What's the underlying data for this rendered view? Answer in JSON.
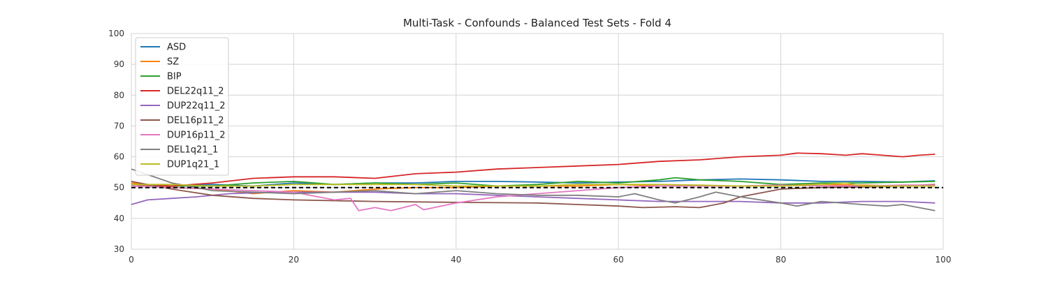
{
  "chart_data": {
    "type": "line",
    "title": "Multi-Task - Confounds - Balanced Test Sets - Fold 4",
    "xlabel": "",
    "ylabel": "",
    "xlim": [
      0,
      100
    ],
    "ylim": [
      30,
      100
    ],
    "xticks": [
      0,
      20,
      40,
      60,
      80,
      100
    ],
    "yticks": [
      30,
      40,
      50,
      60,
      70,
      80,
      90,
      100
    ],
    "grid": true,
    "legend_position": "top-left",
    "reference_line": {
      "y": 50,
      "style": "dashed",
      "color": "#000000"
    },
    "series": [
      {
        "name": "ASD",
        "color": "#1f77b4",
        "points": [
          [
            0,
            51
          ],
          [
            5,
            50.5
          ],
          [
            10,
            51
          ],
          [
            15,
            50.5
          ],
          [
            20,
            51.5
          ],
          [
            25,
            51
          ],
          [
            30,
            51.5
          ],
          [
            35,
            51.5
          ],
          [
            40,
            52
          ],
          [
            45,
            52
          ],
          [
            50,
            51.8
          ],
          [
            55,
            51.5
          ],
          [
            60,
            51.8
          ],
          [
            65,
            52
          ],
          [
            70,
            52.5
          ],
          [
            75,
            52.8
          ],
          [
            80,
            52.5
          ],
          [
            85,
            52
          ],
          [
            90,
            52
          ],
          [
            95,
            51.8
          ],
          [
            99,
            52.2
          ]
        ]
      },
      {
        "name": "SZ",
        "color": "#ff7f0e",
        "points": [
          [
            0,
            51.5
          ],
          [
            5,
            50
          ],
          [
            10,
            49.5
          ],
          [
            15,
            48
          ],
          [
            20,
            49
          ],
          [
            25,
            48.5
          ],
          [
            30,
            49.5
          ],
          [
            35,
            50
          ],
          [
            40,
            50
          ],
          [
            45,
            50.5
          ],
          [
            50,
            50.5
          ],
          [
            55,
            50.5
          ],
          [
            60,
            51
          ],
          [
            65,
            50.5
          ],
          [
            70,
            50.5
          ],
          [
            75,
            50.5
          ],
          [
            80,
            50.8
          ],
          [
            85,
            51
          ],
          [
            90,
            50.8
          ],
          [
            95,
            50.5
          ],
          [
            99,
            51
          ]
        ]
      },
      {
        "name": "BIP",
        "color": "#2ca02c",
        "points": [
          [
            0,
            51
          ],
          [
            5,
            50.5
          ],
          [
            10,
            50.5
          ],
          [
            15,
            51.5
          ],
          [
            20,
            52
          ],
          [
            25,
            51
          ],
          [
            30,
            51.5
          ],
          [
            35,
            51
          ],
          [
            40,
            51.5
          ],
          [
            45,
            50.5
          ],
          [
            50,
            51
          ],
          [
            55,
            52
          ],
          [
            60,
            51.5
          ],
          [
            65,
            52.5
          ],
          [
            67,
            53.2
          ],
          [
            70,
            52.5
          ],
          [
            75,
            52
          ],
          [
            80,
            51
          ],
          [
            85,
            51.5
          ],
          [
            90,
            51.5
          ],
          [
            95,
            51.8
          ],
          [
            99,
            52
          ]
        ]
      },
      {
        "name": "DEL22q11_2",
        "color": "#d62728",
        "points": [
          [
            0,
            51
          ],
          [
            5,
            50.5
          ],
          [
            10,
            51.5
          ],
          [
            15,
            53
          ],
          [
            20,
            53.5
          ],
          [
            25,
            53.5
          ],
          [
            30,
            53
          ],
          [
            35,
            54.5
          ],
          [
            40,
            55
          ],
          [
            45,
            56
          ],
          [
            50,
            56.5
          ],
          [
            55,
            57
          ],
          [
            60,
            57.5
          ],
          [
            65,
            58.5
          ],
          [
            70,
            59
          ],
          [
            75,
            60
          ],
          [
            80,
            60.5
          ],
          [
            82,
            61.2
          ],
          [
            85,
            61
          ],
          [
            88,
            60.5
          ],
          [
            90,
            61
          ],
          [
            95,
            60
          ],
          [
            97,
            60.5
          ],
          [
            99,
            60.8
          ]
        ]
      },
      {
        "name": "DUP22q11_2",
        "color": "#9467bd",
        "points": [
          [
            0,
            44.5
          ],
          [
            2,
            46
          ],
          [
            5,
            46.5
          ],
          [
            8,
            47
          ],
          [
            12,
            48
          ],
          [
            18,
            48.5
          ],
          [
            25,
            48.5
          ],
          [
            30,
            48.5
          ],
          [
            35,
            48
          ],
          [
            40,
            48
          ],
          [
            45,
            47.5
          ],
          [
            50,
            47
          ],
          [
            55,
            46.5
          ],
          [
            60,
            46
          ],
          [
            65,
            45.5
          ],
          [
            70,
            45.5
          ],
          [
            75,
            45.5
          ],
          [
            80,
            45
          ],
          [
            85,
            45
          ],
          [
            90,
            45.5
          ],
          [
            95,
            45.5
          ],
          [
            99,
            45
          ]
        ]
      },
      {
        "name": "DEL16p11_2",
        "color": "#8c564b",
        "points": [
          [
            0,
            52
          ],
          [
            3,
            50.5
          ],
          [
            5,
            49.5
          ],
          [
            10,
            47.5
          ],
          [
            15,
            46.5
          ],
          [
            20,
            46
          ],
          [
            30,
            45.5
          ],
          [
            40,
            45.2
          ],
          [
            50,
            45
          ],
          [
            55,
            44.5
          ],
          [
            60,
            44
          ],
          [
            63,
            43.5
          ],
          [
            67,
            43.8
          ],
          [
            70,
            43.5
          ],
          [
            73,
            45
          ],
          [
            75,
            47
          ],
          [
            80,
            49.5
          ],
          [
            85,
            50
          ],
          [
            90,
            50.2
          ],
          [
            95,
            50.5
          ],
          [
            99,
            51
          ]
        ]
      },
      {
        "name": "DUP16p11_2",
        "color": "#e377c2",
        "points": [
          [
            0,
            50.5
          ],
          [
            5,
            50
          ],
          [
            10,
            49.5
          ],
          [
            15,
            49
          ],
          [
            20,
            48.5
          ],
          [
            23,
            47
          ],
          [
            25,
            46
          ],
          [
            27,
            46.5
          ],
          [
            28,
            42.5
          ],
          [
            30,
            43.5
          ],
          [
            32,
            42.5
          ],
          [
            35,
            44.5
          ],
          [
            36,
            42.8
          ],
          [
            40,
            45
          ],
          [
            45,
            47
          ],
          [
            50,
            48
          ],
          [
            55,
            49
          ],
          [
            60,
            50
          ],
          [
            65,
            50.5
          ],
          [
            70,
            50.5
          ],
          [
            75,
            50.5
          ],
          [
            80,
            50.8
          ],
          [
            85,
            50.5
          ],
          [
            90,
            50.5
          ],
          [
            95,
            50.8
          ],
          [
            99,
            50.8
          ]
        ]
      },
      {
        "name": "DEL1q21_1",
        "color": "#7f7f7f",
        "points": [
          [
            0,
            56
          ],
          [
            5,
            51.5
          ],
          [
            10,
            49
          ],
          [
            15,
            48.5
          ],
          [
            20,
            48
          ],
          [
            25,
            48.5
          ],
          [
            30,
            49
          ],
          [
            35,
            48
          ],
          [
            40,
            49
          ],
          [
            45,
            48
          ],
          [
            50,
            47.5
          ],
          [
            55,
            47.5
          ],
          [
            60,
            47
          ],
          [
            62,
            48
          ],
          [
            65,
            46
          ],
          [
            67,
            45
          ],
          [
            70,
            47
          ],
          [
            72,
            48.5
          ],
          [
            75,
            47
          ],
          [
            80,
            45
          ],
          [
            82,
            44
          ],
          [
            85,
            45.5
          ],
          [
            90,
            44.5
          ],
          [
            93,
            44
          ],
          [
            95,
            44.5
          ],
          [
            99,
            42.5
          ]
        ]
      },
      {
        "name": "DUP1q21_1",
        "color": "#bcbd22",
        "points": [
          [
            0,
            51
          ],
          [
            5,
            51
          ],
          [
            10,
            50.5
          ],
          [
            15,
            50.5
          ],
          [
            20,
            51
          ],
          [
            25,
            51
          ],
          [
            30,
            51
          ],
          [
            35,
            51
          ],
          [
            40,
            50.5
          ],
          [
            45,
            50.5
          ],
          [
            50,
            50.5
          ],
          [
            55,
            51
          ],
          [
            60,
            51
          ],
          [
            65,
            51
          ],
          [
            70,
            50.8
          ],
          [
            75,
            50.5
          ],
          [
            80,
            50.5
          ],
          [
            85,
            51
          ],
          [
            88,
            51.5
          ],
          [
            90,
            50.5
          ],
          [
            95,
            50.5
          ],
          [
            99,
            50.5
          ]
        ]
      }
    ]
  }
}
